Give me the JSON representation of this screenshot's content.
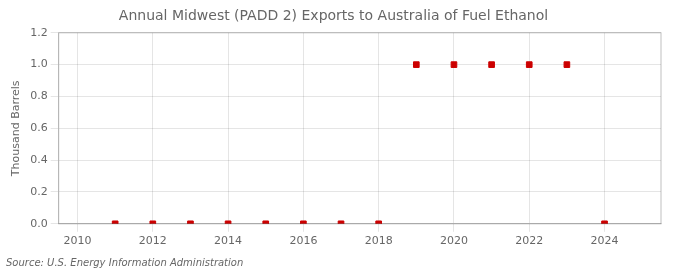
{
  "chart_data": {
    "type": "scatter",
    "title": "Annual Midwest (PADD 2) Exports to Australia of Fuel Ethanol",
    "ylabel": "Thousand Barrels",
    "source": "Source: U.S. Energy Information Administration",
    "x": [
      2011,
      2012,
      2013,
      2014,
      2015,
      2016,
      2017,
      2018,
      2019,
      2020,
      2021,
      2022,
      2023,
      2024
    ],
    "values": [
      0,
      0,
      0,
      0,
      0,
      0,
      0,
      0,
      1,
      1,
      1,
      1,
      1,
      0
    ],
    "color": "#cc0000",
    "marker": "square",
    "line_style": "none",
    "xlim": [
      2009.5,
      2025.5
    ],
    "xticks": [
      2010,
      2012,
      2014,
      2016,
      2018,
      2020,
      2022,
      2024
    ],
    "ylim": [
      0,
      1.2
    ],
    "yticks": [
      {
        "value": 0,
        "label": "0.0"
      },
      0.2,
      0.4,
      0.6,
      0.8,
      {
        "value": 1,
        "label": "1.0"
      },
      1.2
    ],
    "grid": true
  }
}
